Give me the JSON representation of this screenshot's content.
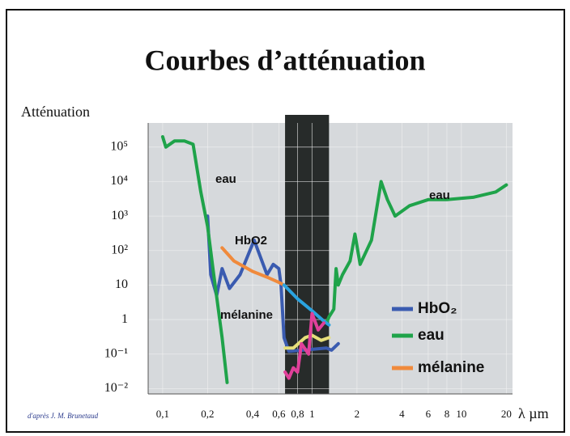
{
  "chart_data": {
    "type": "line",
    "title": "Courbes d’atténuation",
    "y_label": "Atténuation",
    "x_label": "λ µm",
    "credit": "d'après J. M. Brunetaud",
    "xscale": "log",
    "yscale": "log",
    "xlim": [
      0.08,
      22
    ],
    "ylim": [
      0.007,
      500000
    ],
    "xticks": [
      {
        "value": 0.1,
        "label": "0,1"
      },
      {
        "value": 0.2,
        "label": "0,2"
      },
      {
        "value": 0.4,
        "label": "0,4"
      },
      {
        "value": 0.6,
        "label": "0,6"
      },
      {
        "value": 0.8,
        "label": "0,8"
      },
      1,
      2,
      4,
      6,
      8,
      10,
      20
    ],
    "yticks": [
      {
        "value": 0.01,
        "label": "10⁻²"
      },
      {
        "value": 0.1,
        "label": "10⁻¹"
      },
      1,
      10,
      {
        "value": 100,
        "label": "10²"
      },
      {
        "value": 1000,
        "label": "10³"
      },
      {
        "value": 10000,
        "label": "10⁴"
      },
      {
        "value": 100000,
        "label": "10⁵"
      }
    ],
    "grid": true,
    "background": "#d6d9dc",
    "highlight_band": {
      "xlim": [
        0.66,
        1.3
      ],
      "color": "#272b2a"
    },
    "legend": "lower right",
    "series": [
      {
        "name": "HbO₂",
        "color": "#3a5bb0",
        "x": [
          0.2,
          0.21,
          0.23,
          0.25,
          0.28,
          0.33,
          0.41,
          0.5,
          0.55,
          0.6,
          0.62,
          0.65,
          0.7,
          1.25,
          1.35,
          1.5
        ],
        "values": [
          1000,
          20,
          5,
          30,
          8,
          20,
          200,
          20,
          40,
          30,
          10,
          0.3,
          0.12,
          0.15,
          0.13,
          0.2
        ]
      },
      {
        "name": "eau",
        "color": "#1fa34a",
        "x": [
          0.1,
          0.105,
          0.12,
          0.14,
          0.16,
          0.18,
          0.2,
          0.22,
          0.25,
          0.27,
          null,
          1.25,
          1.3,
          1.4,
          1.45,
          1.5,
          1.6,
          1.8,
          1.94,
          2.1,
          2.5,
          2.9,
          3.2,
          3.6,
          4.5,
          6,
          8,
          12,
          17,
          20
        ],
        "values": [
          200000,
          100000,
          150000,
          150000,
          120000,
          5000,
          500,
          20,
          0.3,
          0.015,
          null,
          0.8,
          1.2,
          2,
          30,
          10,
          20,
          50,
          300,
          40,
          200,
          10000,
          3000,
          1000,
          2000,
          3000,
          3000,
          3500,
          5000,
          8000
        ]
      },
      {
        "name": "mélanine",
        "color": "#f08a3c",
        "x": [
          0.25,
          0.3,
          0.4,
          0.5,
          0.6,
          0.65
        ],
        "values": [
          120,
          50,
          25,
          17,
          12,
          10
        ]
      },
      {
        "color": "#2aa3e0",
        "x": [
          0.65,
          0.8,
          1,
          1.2,
          1.3
        ],
        "values": [
          10,
          4,
          1.8,
          0.9,
          0.7
        ]
      },
      {
        "color": "#e6df7a",
        "x": [
          0.66,
          0.75,
          0.9,
          1,
          1.15,
          1.3
        ],
        "values": [
          0.15,
          0.15,
          0.3,
          0.35,
          0.25,
          0.3
        ]
      },
      {
        "color": "#e0409a",
        "x": [
          0.66,
          0.7,
          0.75,
          0.8,
          0.85,
          0.95,
          1,
          1.1,
          1.2
        ],
        "values": [
          0.03,
          0.02,
          0.04,
          0.03,
          0.2,
          0.1,
          1.5,
          0.5,
          0.8
        ]
      }
    ],
    "annotations": [
      "eau",
      "eau",
      "HbO2",
      "mélanine"
    ]
  }
}
